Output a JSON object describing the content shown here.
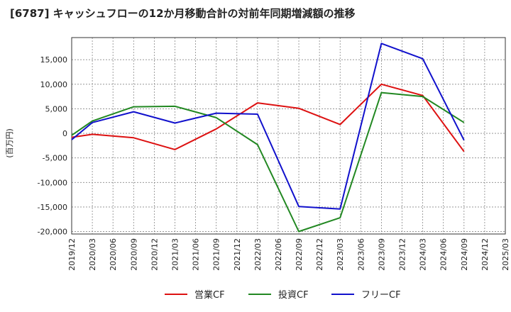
{
  "chart_data": {
    "type": "line",
    "title": "[6787]  キャッシュフローの12か月移動合計の対前年同期増減額の推移",
    "ylabel": "(百万円)",
    "xlabel": "",
    "ylim": [
      -20500,
      19500
    ],
    "yticks": [
      15000,
      10000,
      5000,
      0,
      -5000,
      -10000,
      -15000,
      -20000
    ],
    "ytick_labels": [
      "15,000",
      "10,000",
      "5,000",
      "0",
      "-5,000",
      "-10,000",
      "-15,000",
      "-20,000"
    ],
    "categories": [
      "2019/12",
      "2020/03",
      "2020/06",
      "2020/09",
      "2020/12",
      "2021/03",
      "2021/06",
      "2021/09",
      "2021/12",
      "2022/03",
      "2022/06",
      "2022/09",
      "2022/12",
      "2023/03",
      "2023/06",
      "2023/09",
      "2023/12",
      "2024/03",
      "2024/06",
      "2024/09",
      "2024/12",
      "2025/03"
    ],
    "grid": true,
    "legend_position": "bottom",
    "series": [
      {
        "name": "営業CF",
        "color": "#dd1111",
        "points": [
          [
            "2019/12",
            -800
          ],
          [
            "2020/03",
            -200
          ],
          [
            "2020/09",
            -900
          ],
          [
            "2021/03",
            -3300
          ],
          [
            "2021/09",
            900
          ],
          [
            "2022/03",
            6200
          ],
          [
            "2022/09",
            5100
          ],
          [
            "2023/03",
            1800
          ],
          [
            "2023/09",
            10000
          ],
          [
            "2024/03",
            7700
          ],
          [
            "2024/09",
            -3700
          ]
        ]
      },
      {
        "name": "投資CF",
        "color": "#228822",
        "points": [
          [
            "2019/12",
            -400
          ],
          [
            "2020/03",
            2500
          ],
          [
            "2020/09",
            5400
          ],
          [
            "2021/03",
            5500
          ],
          [
            "2021/09",
            3200
          ],
          [
            "2022/03",
            -2300
          ],
          [
            "2022/09",
            -20000
          ],
          [
            "2023/03",
            -17200
          ],
          [
            "2023/09",
            8300
          ],
          [
            "2024/03",
            7500
          ],
          [
            "2024/09",
            2200
          ]
        ]
      },
      {
        "name": "フリーCF",
        "color": "#1111cc",
        "points": [
          [
            "2019/12",
            -1300
          ],
          [
            "2020/03",
            2200
          ],
          [
            "2020/09",
            4400
          ],
          [
            "2021/03",
            2100
          ],
          [
            "2021/09",
            4100
          ],
          [
            "2022/03",
            3900
          ],
          [
            "2022/09",
            -14900
          ],
          [
            "2023/03",
            -15400
          ],
          [
            "2023/09",
            18300
          ],
          [
            "2024/03",
            15200
          ],
          [
            "2024/09",
            -1400
          ]
        ]
      }
    ]
  }
}
